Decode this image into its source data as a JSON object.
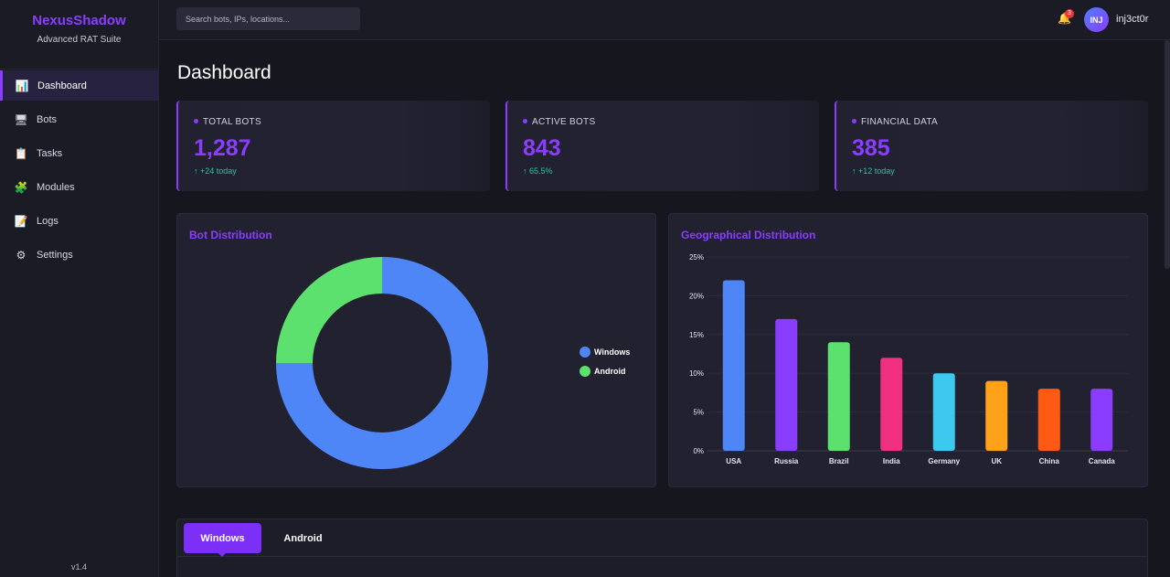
{
  "sidebar": {
    "brand_title": "NexusShadow",
    "brand_subtitle": "Advanced RAT Suite",
    "items": [
      {
        "label": "Dashboard",
        "icon": "chart-icon",
        "glyph": "📊",
        "active": true
      },
      {
        "label": "Bots",
        "icon": "monitor-icon",
        "glyph": "🖥",
        "active": false
      },
      {
        "label": "Tasks",
        "icon": "clipboard-icon",
        "glyph": "📋",
        "active": false
      },
      {
        "label": "Modules",
        "icon": "puzzle-icon",
        "glyph": "🧩",
        "active": false
      },
      {
        "label": "Logs",
        "icon": "memo-icon",
        "glyph": "📝",
        "active": false
      },
      {
        "label": "Settings",
        "icon": "gear-icon",
        "glyph": "⚙",
        "active": false
      }
    ],
    "version": "v1.4"
  },
  "topbar": {
    "search_placeholder": "Search bots, IPs, locations...",
    "notification_count": "3",
    "avatar_initials": "INJ",
    "username": "inj3ct0r"
  },
  "main": {
    "page_title": "Dashboard",
    "stats": [
      {
        "label": "TOTAL BOTS",
        "value": "1,287",
        "change": "↑ +24 today"
      },
      {
        "label": "ACTIVE BOTS",
        "value": "843",
        "change": "↑ 65.5%"
      },
      {
        "label": "FINANCIAL DATA",
        "value": "385",
        "change": "↑ +12 today"
      }
    ],
    "bot_distribution_title": "Bot Distribution",
    "geo_distribution_title": "Geographical Distribution",
    "tabs": [
      {
        "label": "Windows",
        "active": true
      },
      {
        "label": "Android",
        "active": false
      }
    ]
  },
  "colors": {
    "accent": "#8b3dff",
    "positive": "#26c6a0"
  },
  "chart_data": [
    {
      "type": "pie",
      "variant": "donut",
      "title": "Bot Distribution",
      "categories": [
        "Windows",
        "Android"
      ],
      "values": [
        75,
        25
      ],
      "colors": [
        "#4f86f7",
        "#5ce06e"
      ],
      "legend_position": "right"
    },
    {
      "type": "bar",
      "title": "Geographical Distribution",
      "categories": [
        "USA",
        "Russia",
        "Brazil",
        "India",
        "Germany",
        "UK",
        "China",
        "Canada"
      ],
      "values": [
        22,
        17,
        14,
        12,
        10,
        9,
        8,
        8
      ],
      "colors": [
        "#4f86f7",
        "#8b3dff",
        "#5ce06e",
        "#f0307f",
        "#3cc8ef",
        "#ffa21a",
        "#ff5a14",
        "#8b3dff"
      ],
      "yticks": [
        "0%",
        "5%",
        "10%",
        "15%",
        "20%",
        "25%"
      ],
      "ylim": [
        0,
        25
      ],
      "grid": true,
      "legend": false
    }
  ]
}
